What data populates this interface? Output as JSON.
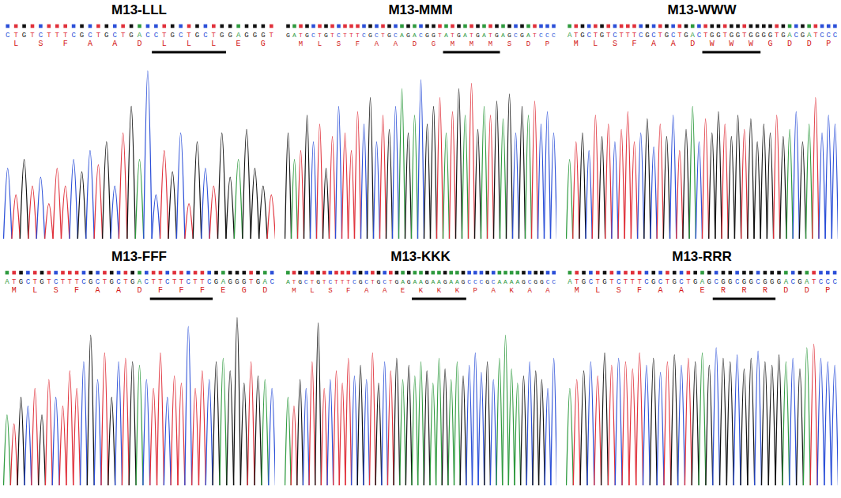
{
  "chart_data": [
    {
      "type": "chromatogram",
      "title": "M13-LLL",
      "sequence": "CTGTCTTTCGCTGCTGACCTGCTGCTGGAGGGT",
      "frame": 0,
      "protein": [
        "L",
        "S",
        "F",
        "A",
        "A",
        "D",
        "L",
        "L",
        "L",
        "E",
        "G"
      ],
      "mutated_codons": [
        6,
        8
      ],
      "values": [
        40,
        25,
        45,
        30,
        35,
        20,
        40,
        30,
        45,
        38,
        50,
        42,
        55,
        30,
        60,
        75,
        45,
        95,
        25,
        50,
        38,
        60,
        20,
        55,
        40,
        30,
        60,
        35,
        45,
        62,
        40,
        30,
        25
      ],
      "ylim": [
        0,
        100
      ],
      "tick_labels": false
    },
    {
      "type": "chromatogram",
      "title": "M13-MMM",
      "sequence": "GATGCTGTCTTTCGCTGCAGACGGTATGATGATGAGCGATCCC",
      "frame": 1,
      "protein": [
        "M",
        "L",
        "S",
        "F",
        "A",
        "A",
        "D",
        "G",
        "M",
        "M",
        "M",
        "S",
        "D",
        "P"
      ],
      "mutated_codons": [
        8,
        10
      ],
      "values": [
        60,
        45,
        50,
        70,
        55,
        65,
        40,
        58,
        75,
        60,
        50,
        72,
        65,
        80,
        55,
        70,
        62,
        75,
        85,
        60,
        70,
        90,
        65,
        75,
        80,
        60,
        72,
        85,
        70,
        88,
        62,
        75,
        70,
        78,
        68,
        82,
        60,
        75,
        70,
        78,
        65,
        72,
        60
      ],
      "ylim": [
        0,
        100
      ],
      "tick_labels": false
    },
    {
      "type": "chromatogram",
      "title": "M13-WWW",
      "sequence": "ATGCTGTCTTTCGCTGCTGACTGGTGGTGGGGTGACGATCCC",
      "frame": 0,
      "protein": [
        "M",
        "L",
        "S",
        "F",
        "A",
        "A",
        "D",
        "W",
        "W",
        "W",
        "G",
        "D",
        "D",
        "P"
      ],
      "mutated_codons": [
        7,
        9
      ],
      "values": [
        45,
        55,
        60,
        50,
        70,
        58,
        65,
        55,
        62,
        72,
        55,
        60,
        68,
        52,
        65,
        58,
        70,
        50,
        62,
        75,
        55,
        68,
        60,
        72,
        65,
        58,
        70,
        62,
        68,
        55,
        65,
        60,
        70,
        58,
        62,
        72,
        55,
        65,
        80,
        60,
        70,
        65
      ],
      "ylim": [
        0,
        100
      ],
      "tick_labels": false
    },
    {
      "type": "chromatogram",
      "title": "M13-FFF",
      "sequence": "ATGCTGTCTTTCGCTGCTGACTTCTTCTTCGAGGGTGAC",
      "frame": 0,
      "protein": [
        "M",
        "L",
        "S",
        "F",
        "A",
        "A",
        "D",
        "F",
        "F",
        "F",
        "E",
        "G",
        "D"
      ],
      "mutated_codons": [
        7,
        9
      ],
      "values": [
        40,
        35,
        50,
        45,
        55,
        40,
        60,
        50,
        45,
        65,
        55,
        70,
        85,
        60,
        75,
        50,
        70,
        72,
        70,
        68,
        60,
        55,
        75,
        50,
        62,
        58,
        90,
        55,
        65,
        60,
        70,
        72,
        65,
        95,
        58,
        70,
        62,
        60,
        55
      ],
      "ylim": [
        0,
        100
      ],
      "tick_labels": false
    },
    {
      "type": "chromatogram",
      "title": "M13-KKK",
      "sequence": "ATGCTGTCTTTCGCTGCTGAGAAGAAGAAGCCCGCAAAAGCGGCC",
      "frame": 0,
      "protein": [
        "M",
        "L",
        "S",
        "F",
        "A",
        "A",
        "E",
        "K",
        "K",
        "K",
        "P",
        "A",
        "K",
        "A",
        "A"
      ],
      "mutated_codons": [
        7,
        9
      ],
      "values": [
        50,
        45,
        60,
        55,
        70,
        92,
        55,
        60,
        65,
        58,
        72,
        62,
        68,
        60,
        75,
        58,
        70,
        65,
        72,
        60,
        68,
        62,
        70,
        65,
        58,
        72,
        66,
        60,
        70,
        62,
        68,
        75,
        64,
        70,
        60,
        72,
        85,
        66,
        58,
        62,
        70,
        65,
        60,
        55,
        72
      ],
      "ylim": [
        0,
        100
      ],
      "tick_labels": false
    },
    {
      "type": "chromatogram",
      "title": "M13-RRR",
      "sequence": "ATGCTGTCTTTCGCTGCTGAGCGGCGGCGGGACGATCCC",
      "frame": 0,
      "protein": [
        "M",
        "L",
        "S",
        "F",
        "A",
        "A",
        "E",
        "R",
        "R",
        "R",
        "D",
        "D",
        "P"
      ],
      "mutated_codons": [
        7,
        9
      ],
      "values": [
        55,
        60,
        65,
        70,
        62,
        75,
        68,
        72,
        70,
        66,
        75,
        68,
        72,
        64,
        70,
        74,
        68,
        72,
        70,
        75,
        68,
        78,
        72,
        70,
        74,
        66,
        72,
        76,
        70,
        68,
        74,
        70,
        72,
        66,
        78,
        80,
        72,
        70,
        68
      ],
      "ylim": [
        0,
        100
      ],
      "tick_labels": false
    }
  ]
}
